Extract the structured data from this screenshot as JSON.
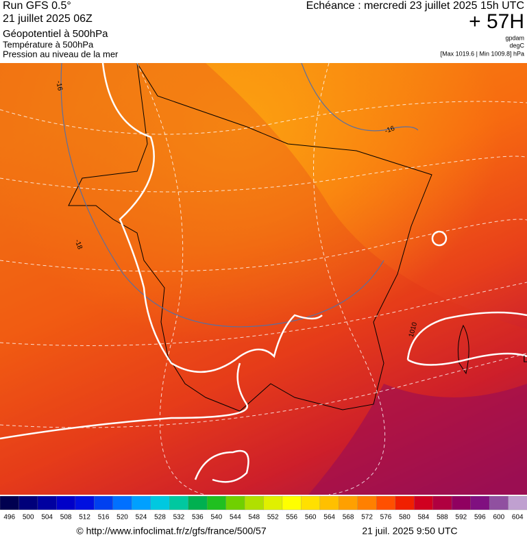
{
  "header": {
    "run": "Run GFS 0.5°",
    "run_date": "21 juillet 2025 06Z",
    "field1": "Géopotentiel à 500hPa",
    "field2": "Température à 500hPa",
    "field3": "Pression au niveau de la mer",
    "valid": "Echéance : mercredi 23 juillet 2025 15h UTC",
    "lead": "+ 57H",
    "unit1": "gpdam",
    "unit2": "degC",
    "pressure_range": "[Max 1019.6 | Min 1009.8] hPa"
  },
  "map": {
    "contour_labels": [
      "-16",
      "-16",
      "-18",
      "1010",
      "L"
    ]
  },
  "colorbar": {
    "labels": [
      496,
      500,
      504,
      508,
      512,
      516,
      520,
      524,
      528,
      532,
      536,
      540,
      544,
      548,
      552,
      556,
      560,
      564,
      568,
      572,
      576,
      580,
      584,
      588,
      592,
      596,
      600,
      604
    ],
    "colors": [
      "#000050",
      "#00007a",
      "#0000a0",
      "#0000c8",
      "#0010e0",
      "#0040f0",
      "#0070ff",
      "#00a0ff",
      "#00c8e0",
      "#00c8a0",
      "#00b050",
      "#20c020",
      "#70d000",
      "#b0e000",
      "#e0f000",
      "#ffff00",
      "#ffe000",
      "#ffc000",
      "#ffa000",
      "#ff8000",
      "#ff5000",
      "#f02000",
      "#d00020",
      "#b00040",
      "#900060",
      "#801080",
      "#9050a0",
      "#c0a0d0"
    ]
  },
  "footer": {
    "source": "© http://www.infoclimat.fr/z/gfs/france/500/57",
    "generated": "21 juil. 2025  9:50 UTC"
  }
}
